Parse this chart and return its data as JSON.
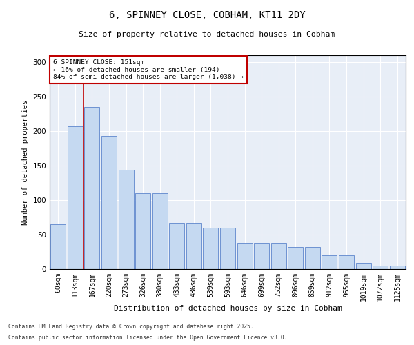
{
  "title1": "6, SPINNEY CLOSE, COBHAM, KT11 2DY",
  "title2": "Size of property relative to detached houses in Cobham",
  "xlabel": "Distribution of detached houses by size in Cobham",
  "ylabel": "Number of detached properties",
  "categories": [
    "60sqm",
    "113sqm",
    "167sqm",
    "220sqm",
    "273sqm",
    "326sqm",
    "380sqm",
    "433sqm",
    "486sqm",
    "539sqm",
    "593sqm",
    "646sqm",
    "699sqm",
    "752sqm",
    "806sqm",
    "859sqm",
    "912sqm",
    "965sqm",
    "1019sqm",
    "1072sqm",
    "1125sqm"
  ],
  "values": [
    65,
    207,
    235,
    193,
    144,
    110,
    110,
    67,
    67,
    60,
    60,
    38,
    38,
    38,
    32,
    32,
    20,
    20,
    9,
    5,
    5
  ],
  "bar_color": "#c5d9f1",
  "bar_edge_color": "#4472c4",
  "vline_color": "#c00000",
  "annotation_title": "6 SPINNEY CLOSE: 151sqm",
  "annotation_line1": "← 16% of detached houses are smaller (194)",
  "annotation_line2": "84% of semi-detached houses are larger (1,038) →",
  "annotation_box_color": "#ffffff",
  "annotation_box_edge": "#c00000",
  "footnote1": "Contains HM Land Registry data © Crown copyright and database right 2025.",
  "footnote2": "Contains public sector information licensed under the Open Government Licence v3.0.",
  "bg_color": "#ffffff",
  "plot_bg_color": "#e8eef7",
  "grid_color": "#ffffff",
  "ylim": [
    0,
    310
  ],
  "yticks": [
    0,
    50,
    100,
    150,
    200,
    250,
    300
  ]
}
